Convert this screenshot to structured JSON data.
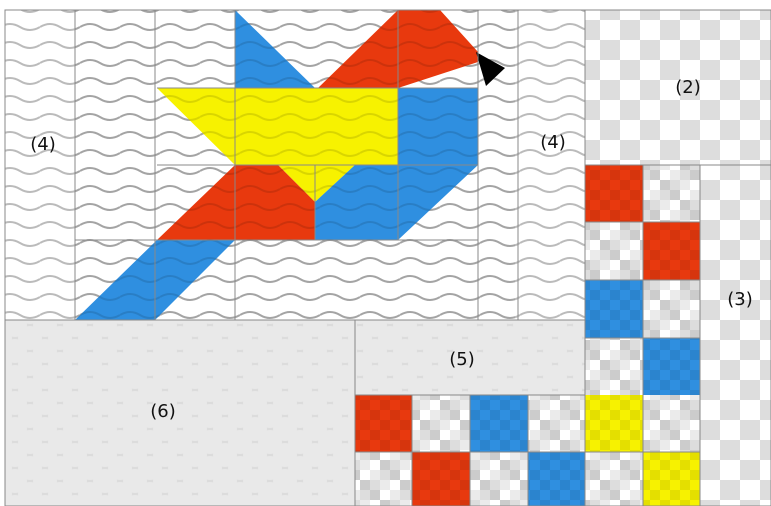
{
  "regions": [
    {
      "label": "(4)"
    },
    {
      "label": "(2)"
    },
    {
      "label": "(4)"
    },
    {
      "label": "(3)"
    },
    {
      "label": "(5)"
    },
    {
      "label": "(6)"
    }
  ]
}
